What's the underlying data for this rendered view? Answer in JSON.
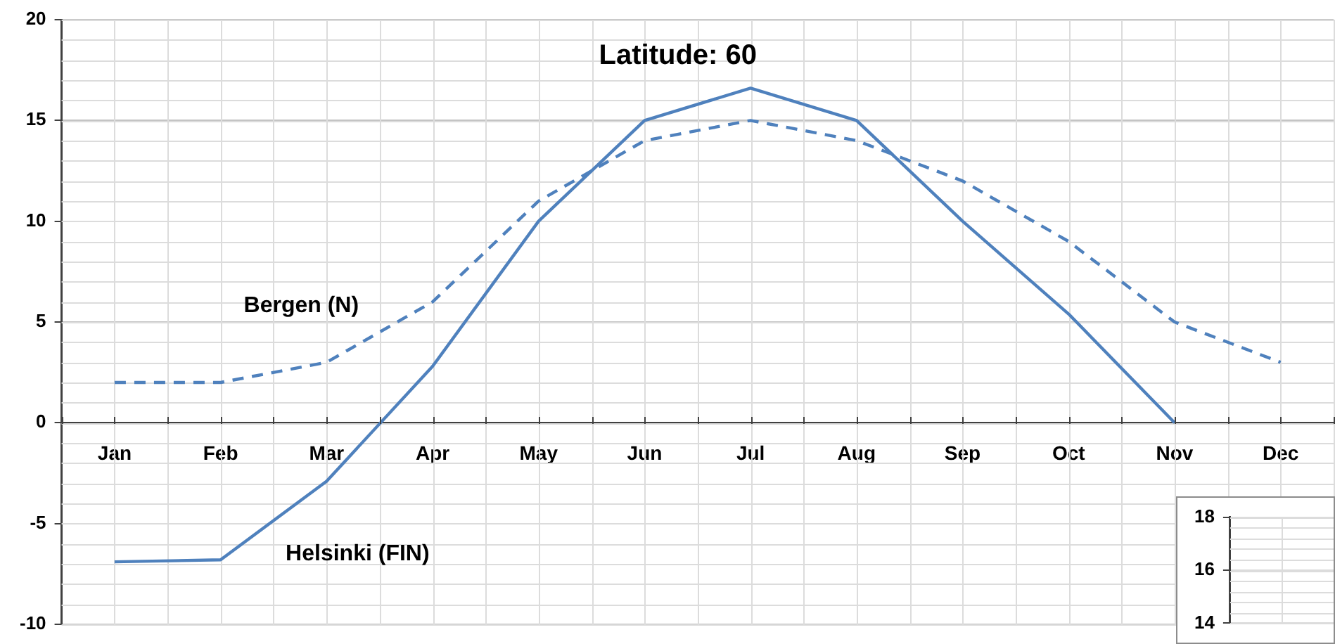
{
  "chart_data": [
    {
      "type": "line",
      "title": "Latitude: 60",
      "categories": [
        "Jan",
        "Feb",
        "Mar",
        "Apr",
        "May",
        "Jun",
        "Jul",
        "Aug",
        "Sep",
        "Oct",
        "Nov",
        "Dec"
      ],
      "series": [
        {
          "name": "Bergen (N)",
          "color": "#4f81bd",
          "line_style": "dashed",
          "values": [
            2,
            2,
            3,
            6,
            11,
            14,
            15,
            14,
            12,
            9,
            5,
            3
          ]
        },
        {
          "name": "Helsinki (FIN)",
          "color": "#4f81bd",
          "line_style": "solid",
          "values": [
            -6.9,
            -6.8,
            -2.9,
            2.8,
            10,
            15,
            16.6,
            15,
            10,
            5.4,
            0,
            null
          ]
        }
      ],
      "ylim": [
        -10,
        20
      ],
      "yticks": [
        -10,
        -5,
        0,
        5,
        10,
        15,
        20
      ],
      "grid": true,
      "legend": false,
      "marker": "none"
    },
    {
      "type": "line",
      "categories": [
        null
      ],
      "ylim": [
        14,
        18
      ],
      "yticks": [
        14,
        16,
        18
      ],
      "grid": true,
      "legend": false
    }
  ]
}
